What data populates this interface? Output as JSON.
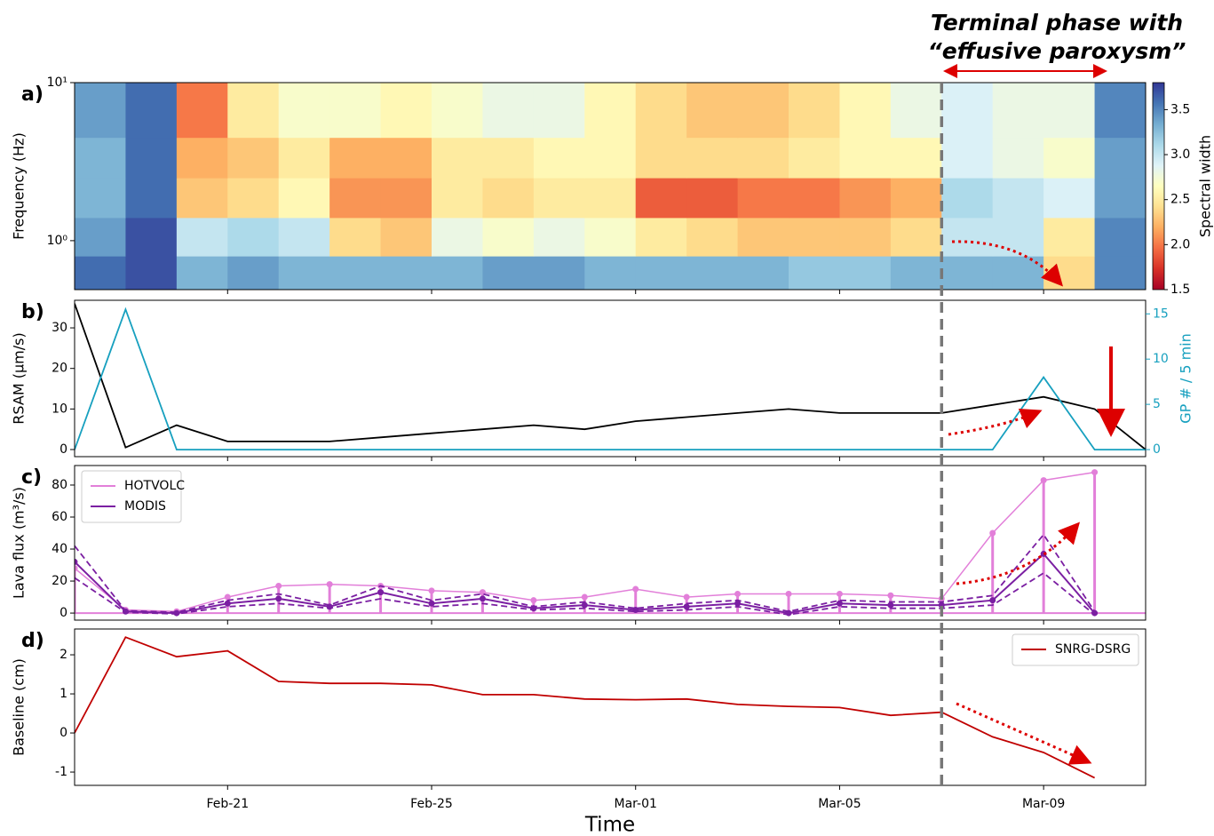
{
  "chart_data": [
    {
      "type": "heatmap",
      "label": "a)",
      "ylabel": "Frequency (Hz)",
      "yscale": "log",
      "ylim": [
        0.49,
        10
      ],
      "yticks": [
        {
          "value": 1,
          "label": "10⁰"
        },
        {
          "value": 10,
          "label": "10¹"
        }
      ],
      "x_bins": [
        "Feb-18",
        "Feb-19",
        "Feb-20",
        "Feb-21",
        "Feb-22",
        "Feb-23",
        "Feb-24",
        "Feb-25",
        "Feb-26",
        "Feb-27",
        "Feb-28",
        "Mar-01",
        "Mar-02",
        "Mar-03",
        "Mar-04",
        "Mar-05",
        "Mar-06",
        "Mar-07",
        "Mar-08",
        "Mar-09",
        "Mar-10",
        "Mar-11"
      ],
      "y_bins": [
        0.49,
        0.8,
        1.4,
        2.5,
        4.5,
        10
      ],
      "values": [
        [
          3.6,
          3.7,
          3.3,
          3.4,
          3.3,
          3.3,
          3.3,
          3.3,
          3.4,
          3.4,
          3.3,
          3.3,
          3.3,
          3.3,
          3.2,
          3.2,
          3.3,
          3.3,
          3.3,
          2.4,
          3.5
        ],
        [
          3.4,
          3.7,
          3.0,
          3.1,
          3.0,
          2.4,
          2.3,
          2.8,
          2.7,
          2.8,
          2.7,
          2.5,
          2.4,
          2.3,
          2.3,
          2.3,
          2.4,
          3.0,
          3.0,
          2.5,
          3.5
        ],
        [
          3.3,
          3.6,
          2.3,
          2.4,
          2.6,
          2.1,
          2.1,
          2.5,
          2.4,
          2.5,
          2.5,
          1.9,
          1.9,
          2.0,
          2.0,
          2.1,
          2.2,
          3.1,
          3.0,
          2.9,
          3.4
        ],
        [
          3.3,
          3.6,
          2.2,
          2.3,
          2.5,
          2.2,
          2.2,
          2.5,
          2.5,
          2.6,
          2.6,
          2.4,
          2.4,
          2.4,
          2.5,
          2.6,
          2.6,
          2.9,
          2.8,
          2.7,
          3.4
        ],
        [
          3.4,
          3.6,
          2.0,
          2.5,
          2.7,
          2.7,
          2.6,
          2.7,
          2.8,
          2.8,
          2.6,
          2.4,
          2.3,
          2.3,
          2.4,
          2.6,
          2.8,
          2.9,
          2.8,
          2.8,
          3.5
        ]
      ],
      "colormap": "RdYlBu",
      "clim": [
        1.5,
        3.8
      ],
      "colorbar_label": "Spectral width",
      "colorbar_ticks": [
        1.5,
        {
          "value": 2,
          "label": "2.0"
        },
        2.5,
        {
          "value": 3,
          "label": "3.0"
        },
        3.5
      ],
      "annotation": [
        "Terminal phase with",
        "“effusive paroxysm”"
      ],
      "vline": "Mar-07"
    },
    {
      "type": "line",
      "label": "b)",
      "ylabel": "RSAM (µm/s)",
      "y2label": "GP # / 5 min",
      "ylim": [
        -1.75,
        36.8
      ],
      "yticks": [
        0,
        10,
        20,
        30
      ],
      "y2lim": [
        -0.78,
        16.5
      ],
      "y2ticks": [
        0,
        5,
        10,
        15
      ],
      "x": [
        "Feb-18",
        "Feb-19",
        "Feb-20",
        "Feb-21",
        "Feb-22",
        "Feb-23",
        "Feb-24",
        "Feb-25",
        "Feb-26",
        "Feb-27",
        "Feb-28",
        "Mar-01",
        "Mar-02",
        "Mar-03",
        "Mar-04",
        "Mar-05",
        "Mar-06",
        "Mar-07",
        "Mar-08",
        "Mar-09",
        "Mar-10",
        "Mar-11"
      ],
      "series": [
        {
          "color": "#000000",
          "values": [
            36,
            0.5,
            6,
            2,
            2,
            2,
            3,
            4,
            5,
            6,
            5,
            7,
            8,
            9,
            10,
            9,
            9,
            9,
            11,
            13,
            10,
            0
          ]
        },
        {
          "color": "#17a0bf",
          "axis": "y2",
          "values": [
            0,
            15.5,
            0,
            0,
            0,
            0,
            0,
            0,
            0,
            0,
            0,
            0,
            0,
            0,
            0,
            0,
            0,
            0,
            0,
            8,
            0,
            0
          ]
        }
      ]
    },
    {
      "type": "line",
      "label": "c)",
      "ylabel": "Lava flux (m³/s)",
      "ylim": [
        -4.4,
        92.2
      ],
      "yticks": [
        0,
        20,
        40,
        60,
        80
      ],
      "legend": "upper left",
      "x": [
        "Feb-18",
        "Feb-19",
        "Feb-20",
        "Feb-21",
        "Feb-22",
        "Feb-23",
        "Feb-24",
        "Feb-25",
        "Feb-26",
        "Feb-27",
        "Feb-28",
        "Mar-01",
        "Mar-02",
        "Mar-03",
        "Mar-04",
        "Mar-05",
        "Mar-06",
        "Mar-07",
        "Mar-08",
        "Mar-09",
        "Mar-10"
      ],
      "series": [
        {
          "name": "HOTVOLC",
          "color": "#e27fd9",
          "style": "stem",
          "values": [
            28,
            2,
            1,
            10,
            17,
            18,
            17,
            14,
            13,
            8,
            10,
            15,
            10,
            12,
            12,
            12,
            11,
            9,
            50,
            83,
            88
          ]
        },
        {
          "name": "MODIS",
          "color": "#7b1fa2",
          "values": [
            32,
            1,
            0,
            6,
            9,
            4,
            13,
            6,
            9,
            3,
            5,
            2,
            4,
            6,
            0,
            6,
            5,
            5,
            8,
            37,
            0
          ],
          "err": [
            10,
            0.5,
            0.5,
            2,
            3,
            1,
            4,
            2,
            3,
            1,
            2,
            1,
            2,
            2,
            1,
            2,
            2,
            2,
            3,
            12,
            1
          ]
        }
      ]
    },
    {
      "type": "line",
      "label": "d)",
      "ylabel": "Baseline (cm)",
      "xlabel": "Time",
      "xlim": [
        "Feb-18",
        "Mar-11"
      ],
      "xticks": [
        "Feb-21",
        "Feb-25",
        "Mar-01",
        "Mar-05",
        "Mar-09"
      ],
      "ylim": [
        -1.34,
        2.66
      ],
      "yticks": [
        -1,
        0,
        1,
        2
      ],
      "legend": "upper right",
      "x": [
        "Feb-18",
        "Feb-19",
        "Feb-20",
        "Feb-21",
        "Feb-22",
        "Feb-23",
        "Feb-24",
        "Feb-25",
        "Feb-26",
        "Feb-27",
        "Feb-28",
        "Mar-01",
        "Mar-02",
        "Mar-03",
        "Mar-04",
        "Mar-05",
        "Mar-06",
        "Mar-07",
        "Mar-08",
        "Mar-09",
        "Mar-10"
      ],
      "series": [
        {
          "name": "SNRG-DSRG",
          "color": "#c00000",
          "values": [
            0,
            2.45,
            1.95,
            2.1,
            1.32,
            1.27,
            1.27,
            1.23,
            0.98,
            0.98,
            0.87,
            0.85,
            0.87,
            0.73,
            0.68,
            0.65,
            0.45,
            0.53,
            -0.1,
            -0.5,
            -1.15
          ]
        }
      ]
    }
  ]
}
